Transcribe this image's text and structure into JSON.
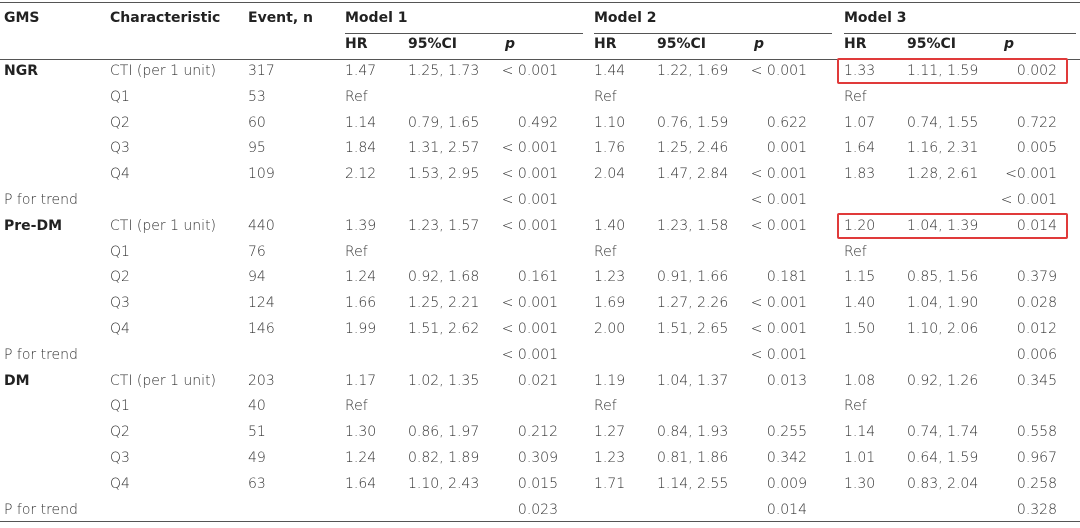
{
  "table": {
    "header": [
      "GMS",
      "Characteristic",
      "Event, n"
    ],
    "models": [
      "Model 1",
      "Model 2",
      "Model 3"
    ],
    "subheaders": [
      "HR",
      "95%CI",
      "p"
    ],
    "rows": [
      [
        "NGR",
        "CTI (per 1 unit)",
        "317",
        "1.47",
        "1.25, 1.73",
        "< 0.001",
        "1.44",
        "1.22, 1.69",
        "< 0.001",
        "1.33",
        "1.11, 1.59",
        "0.002"
      ],
      [
        null,
        "Q1",
        "53",
        "Ref",
        null,
        null,
        "Ref",
        null,
        null,
        "Ref",
        null,
        null
      ],
      [
        null,
        "Q2",
        "60",
        "1.14",
        "0.79, 1.65",
        "0.492",
        "1.10",
        "0.76, 1.59",
        "0.622",
        "1.07",
        "0.74, 1.55",
        "0.722"
      ],
      [
        null,
        "Q3",
        "95",
        "1.84",
        "1.31, 2.57",
        "< 0.001",
        "1.76",
        "1.25, 2.46",
        "0.001",
        "1.64",
        "1.16, 2.31",
        "0.005"
      ],
      [
        null,
        "Q4",
        "109",
        "2.12",
        "1.53, 2.95",
        "< 0.001",
        "2.04",
        "1.47, 2.84",
        "< 0.001",
        "1.83",
        "1.28, 2.61",
        "<0.001"
      ],
      [
        "P for trend",
        null,
        null,
        null,
        null,
        "< 0.001",
        null,
        null,
        "< 0.001",
        null,
        null,
        "< 0.001"
      ],
      [
        "Pre-DM",
        "CTI (per 1 unit)",
        "440",
        "1.39",
        "1.23, 1.57",
        "< 0.001",
        "1.40",
        "1.23, 1.58",
        "< 0.001",
        "1.20",
        "1.04, 1.39",
        "0.014"
      ],
      [
        null,
        "Q1",
        "76",
        "Ref",
        null,
        null,
        "Ref",
        null,
        null,
        "Ref",
        null,
        null
      ],
      [
        null,
        "Q2",
        "94",
        "1.24",
        "0.92, 1.68",
        "0.161",
        "1.23",
        "0.91, 1.66",
        "0.181",
        "1.15",
        "0.85, 1.56",
        "0.379"
      ],
      [
        null,
        "Q3",
        "124",
        "1.66",
        "1.25, 2.21",
        "< 0.001",
        "1.69",
        "1.27, 2.26",
        "< 0.001",
        "1.40",
        "1.04, 1.90",
        "0.028"
      ],
      [
        null,
        "Q4",
        "146",
        "1.99",
        "1.51, 2.62",
        "< 0.001",
        "2.00",
        "1.51, 2.65",
        "< 0.001",
        "1.50",
        "1.10, 2.06",
        "0.012"
      ],
      [
        "P for trend",
        null,
        null,
        null,
        null,
        "< 0.001",
        null,
        null,
        "< 0.001",
        null,
        null,
        "0.006"
      ],
      [
        "DM",
        "CTI (per 1 unit)",
        "203",
        "1.17",
        "1.02, 1.35",
        "0.021",
        "1.19",
        "1.04, 1.37",
        "0.013",
        "1.08",
        "0.92, 1.26",
        "0.345"
      ],
      [
        null,
        "Q1",
        "40",
        "Ref",
        null,
        null,
        "Ref",
        null,
        null,
        "Ref",
        null,
        null
      ],
      [
        null,
        "Q2",
        "51",
        "1.30",
        "0.86, 1.97",
        "0.212",
        "1.27",
        "0.84, 1.93",
        "0.255",
        "1.14",
        "0.74, 1.74",
        "0.558"
      ],
      [
        null,
        "Q3",
        "49",
        "1.24",
        "0.82, 1.89",
        "0.309",
        "1.23",
        "0.81, 1.86",
        "0.342",
        "1.01",
        "0.64, 1.59",
        "0.967"
      ],
      [
        null,
        "Q4",
        "63",
        "1.64",
        "1.10, 2.43",
        "0.015",
        "1.71",
        "1.14, 2.55",
        "0.009",
        "1.30",
        "0.83, 2.04",
        "0.258"
      ],
      [
        "P for trend",
        null,
        null,
        null,
        null,
        "0.023",
        null,
        null,
        "0.014",
        null,
        null,
        "0.328"
      ]
    ]
  }
}
